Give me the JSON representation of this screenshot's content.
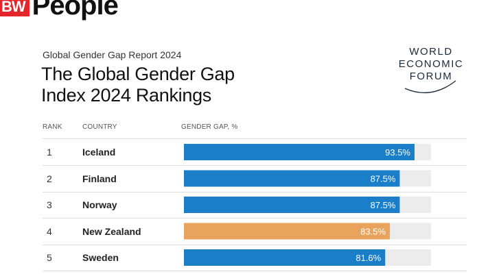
{
  "brand": {
    "badge": "BW",
    "word": "People"
  },
  "report_label": "Global Gender Gap Report 2024",
  "title_line1": "The Global Gender Gap",
  "title_line2": "Index 2024 Rankings",
  "wef": {
    "line1": "WORLD",
    "line2": "ECONOMIC",
    "line3": "FORUM"
  },
  "headers": {
    "rank": "RANK",
    "country": "COUNTRY",
    "gap": "GENDER GAP, %"
  },
  "colors": {
    "blue": "#1a7ec9",
    "orange": "#e8a45c",
    "track": "#ececec"
  },
  "chart_data": {
    "type": "bar",
    "orientation": "horizontal",
    "title": "The Global Gender Gap Index 2024 Rankings",
    "xlabel": "GENDER GAP, %",
    "xlim": [
      0,
      100
    ],
    "rows": [
      {
        "rank": "1",
        "country": "Iceland",
        "value": 93.5,
        "label": "93.5%",
        "highlight": false
      },
      {
        "rank": "2",
        "country": "Finland",
        "value": 87.5,
        "label": "87.5%",
        "highlight": false
      },
      {
        "rank": "3",
        "country": "Norway",
        "value": 87.5,
        "label": "87.5%",
        "highlight": false
      },
      {
        "rank": "4",
        "country": "New Zealand",
        "value": 83.5,
        "label": "83.5%",
        "highlight": true
      },
      {
        "rank": "5",
        "country": "Sweden",
        "value": 81.6,
        "label": "81.6%",
        "highlight": false
      }
    ]
  }
}
